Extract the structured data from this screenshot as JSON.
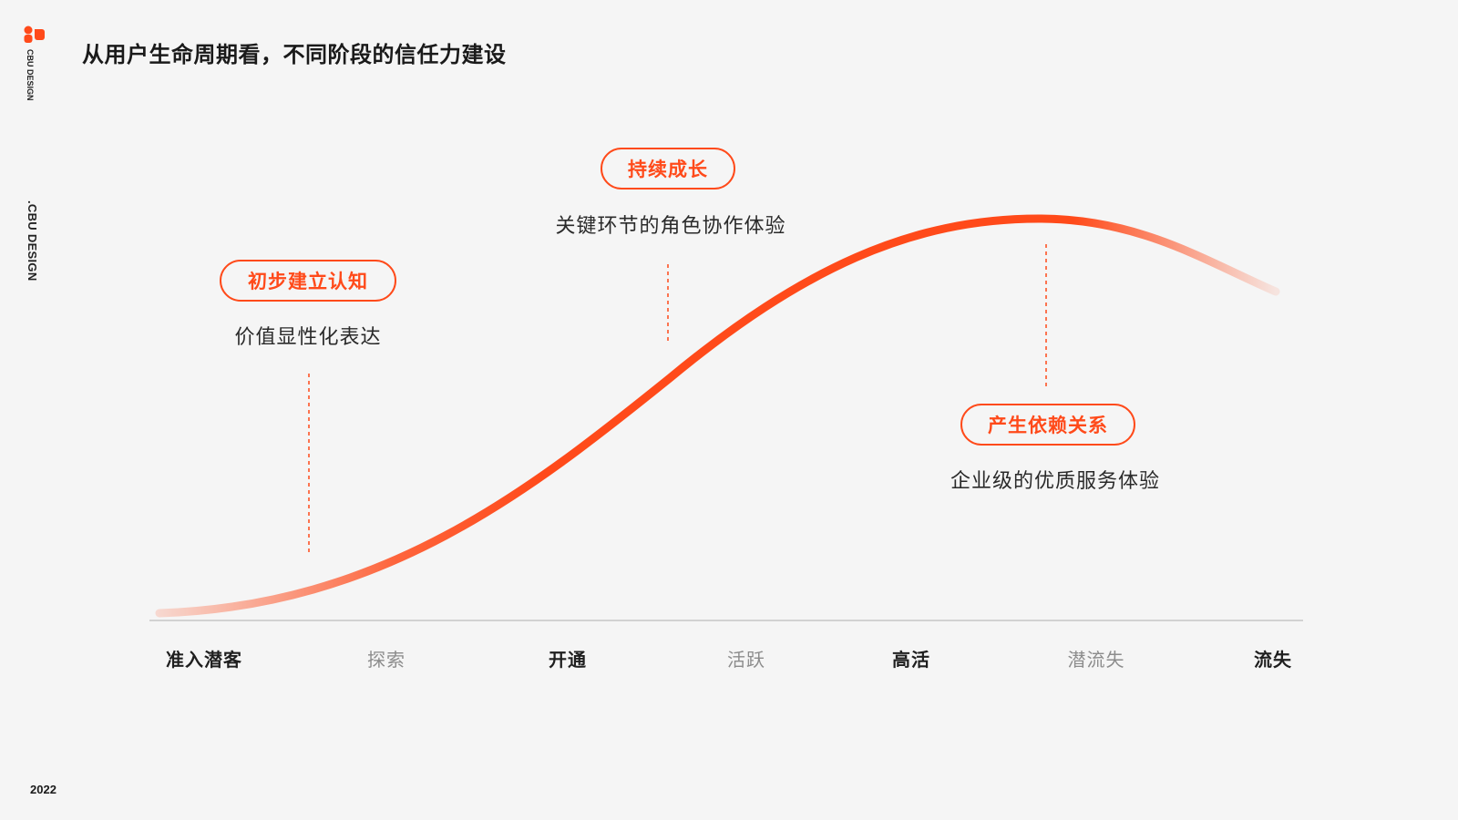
{
  "brand": {
    "logo_text": "CBU DESIGN",
    "side_label": ".CBU DESIGN",
    "year": "2022",
    "accent": "#ff4a1a"
  },
  "title": "从用户生命周期看，不同阶段的信任力建设",
  "milestones": [
    {
      "tag": "初步建立认知",
      "desc": "价值显性化表达"
    },
    {
      "tag": "持续成长",
      "desc": "关键环节的角色协作体验"
    },
    {
      "tag": "产生依赖关系",
      "desc": "企业级的优质服务体验"
    }
  ],
  "stages": [
    {
      "label": "准入潜客",
      "emphasis": "dark"
    },
    {
      "label": "探索",
      "emphasis": "light"
    },
    {
      "label": "开通",
      "emphasis": "dark"
    },
    {
      "label": "活跃",
      "emphasis": "light"
    },
    {
      "label": "高活",
      "emphasis": "dark"
    },
    {
      "label": "潜流失",
      "emphasis": "light"
    },
    {
      "label": "流失",
      "emphasis": "dark"
    }
  ]
}
